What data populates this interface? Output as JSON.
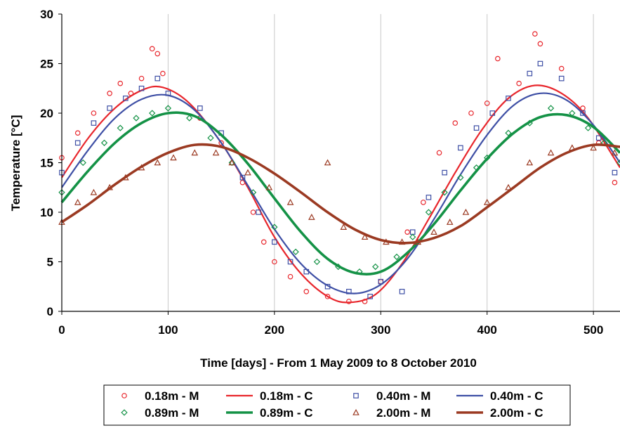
{
  "chart_data": {
    "type": "scatter",
    "xlabel": "Time [days] - From 1 May 2009 to 8 October 2010",
    "ylabel": "Temperature [°C]",
    "xlim": [
      0,
      525
    ],
    "ylim": [
      0,
      30
    ],
    "x_ticks": [
      0,
      100,
      200,
      300,
      400,
      500
    ],
    "y_ticks": [
      0,
      5,
      10,
      15,
      20,
      25,
      30
    ],
    "grid": "vertical",
    "legend_position": "bottom",
    "series": [
      {
        "name": "0.18m - M",
        "kind": "measured",
        "marker": "circle",
        "color": "#e8262c",
        "x": [
          0,
          15,
          30,
          45,
          55,
          65,
          75,
          85,
          90,
          95,
          130,
          150,
          170,
          180,
          190,
          200,
          215,
          230,
          250,
          270,
          285,
          300,
          325,
          340,
          355,
          370,
          385,
          400,
          410,
          430,
          445,
          450,
          470,
          490,
          505,
          520
        ],
        "y": [
          15.5,
          18.0,
          20.0,
          22.0,
          23.0,
          22.0,
          23.5,
          26.5,
          26.0,
          24.0,
          19.5,
          17.0,
          13.0,
          10.0,
          7.0,
          5.0,
          3.5,
          2.0,
          1.5,
          1.0,
          1.0,
          3.0,
          8.0,
          11.0,
          16.0,
          19.0,
          20.0,
          21.0,
          25.5,
          23.0,
          28.0,
          27.0,
          24.5,
          20.5,
          17.0,
          13.0
        ]
      },
      {
        "name": "0.18m - C",
        "kind": "curve",
        "color": "#e8262c",
        "x": [
          0,
          25,
          50,
          75,
          95,
          120,
          150,
          175,
          200,
          225,
          250,
          270,
          295,
          320,
          345,
          370,
          395,
          420,
          445,
          470,
          495,
          525
        ],
        "y": [
          13.5,
          17.5,
          20.5,
          22.3,
          22.6,
          21.0,
          17.0,
          12.5,
          7.5,
          3.8,
          1.5,
          0.9,
          1.7,
          4.8,
          9.3,
          14.0,
          18.3,
          21.5,
          22.8,
          22.0,
          19.5,
          14.5
        ]
      },
      {
        "name": "0.40m - M",
        "kind": "measured",
        "marker": "square",
        "color": "#3e4fa5",
        "x": [
          0,
          15,
          30,
          45,
          60,
          75,
          90,
          100,
          130,
          150,
          170,
          185,
          200,
          215,
          230,
          250,
          270,
          290,
          300,
          320,
          330,
          345,
          360,
          375,
          390,
          405,
          420,
          440,
          450,
          470,
          490,
          505,
          520
        ],
        "y": [
          14.0,
          17.0,
          19.0,
          20.5,
          21.5,
          22.5,
          23.5,
          22.0,
          20.5,
          18.0,
          13.5,
          10.0,
          7.0,
          5.0,
          4.0,
          2.5,
          2.0,
          1.5,
          3.0,
          2.0,
          8.0,
          11.5,
          14.0,
          16.5,
          18.5,
          20.0,
          21.5,
          24.0,
          25.0,
          23.5,
          20.0,
          17.5,
          14.0
        ]
      },
      {
        "name": "0.40m - C",
        "kind": "curve",
        "color": "#3e4fa5",
        "x": [
          0,
          25,
          50,
          75,
          100,
          125,
          150,
          175,
          200,
          225,
          250,
          275,
          300,
          325,
          350,
          375,
          400,
          425,
          450,
          475,
          500,
          525
        ],
        "y": [
          12.5,
          16.3,
          19.5,
          21.4,
          21.8,
          20.3,
          17.0,
          12.7,
          8.3,
          4.8,
          2.6,
          1.8,
          2.7,
          5.3,
          9.3,
          13.8,
          17.8,
          20.8,
          22.0,
          21.3,
          18.8,
          15.0
        ]
      },
      {
        "name": "0.89m - M",
        "kind": "measured",
        "marker": "diamond",
        "color": "#149246",
        "x": [
          0,
          20,
          40,
          55,
          70,
          85,
          100,
          120,
          140,
          160,
          180,
          200,
          220,
          240,
          260,
          280,
          295,
          315,
          330,
          345,
          360,
          375,
          390,
          400,
          420,
          440,
          460,
          480,
          495,
          510,
          525
        ],
        "y": [
          12.0,
          15.0,
          17.0,
          18.5,
          19.5,
          20.0,
          20.5,
          19.5,
          17.5,
          15.0,
          12.0,
          8.5,
          6.0,
          5.0,
          4.5,
          4.0,
          4.5,
          5.5,
          7.5,
          10.0,
          12.0,
          13.5,
          14.5,
          15.5,
          18.0,
          19.0,
          20.5,
          20.0,
          18.5,
          17.0,
          15.0
        ]
      },
      {
        "name": "0.89m - C",
        "kind": "curve",
        "color": "#149246",
        "x": [
          0,
          25,
          50,
          75,
          100,
          125,
          150,
          175,
          200,
          225,
          250,
          275,
          300,
          325,
          350,
          375,
          400,
          425,
          450,
          475,
          500,
          525
        ],
        "y": [
          11.0,
          14.2,
          17.0,
          19.0,
          20.0,
          19.7,
          17.8,
          14.9,
          11.4,
          8.0,
          5.3,
          3.9,
          4.0,
          5.9,
          8.8,
          12.2,
          15.4,
          18.0,
          19.6,
          19.8,
          18.6,
          16.0
        ]
      },
      {
        "name": "2.00m - M",
        "kind": "measured",
        "marker": "triangle",
        "color": "#9b3a22",
        "x": [
          0,
          15,
          30,
          45,
          60,
          75,
          90,
          105,
          125,
          145,
          160,
          175,
          195,
          215,
          235,
          250,
          265,
          285,
          305,
          320,
          335,
          350,
          365,
          380,
          400,
          420,
          440,
          460,
          480,
          500,
          520
        ],
        "y": [
          9.0,
          11.0,
          12.0,
          12.5,
          13.5,
          14.5,
          15.0,
          15.5,
          16.0,
          16.0,
          15.0,
          14.0,
          12.5,
          11.0,
          9.5,
          15.0,
          8.5,
          7.5,
          7.0,
          7.0,
          7.0,
          8.0,
          9.0,
          10.0,
          11.0,
          12.5,
          15.0,
          16.0,
          16.5,
          16.5,
          16.0
        ]
      },
      {
        "name": "2.00m - C",
        "kind": "curve",
        "color": "#9b3a22",
        "x": [
          0,
          25,
          50,
          75,
          100,
          125,
          150,
          175,
          200,
          225,
          250,
          275,
          300,
          325,
          350,
          375,
          400,
          425,
          450,
          475,
          500,
          525
        ],
        "y": [
          9.0,
          10.8,
          12.8,
          14.6,
          16.0,
          16.8,
          16.6,
          15.5,
          13.9,
          12.0,
          10.0,
          8.3,
          7.2,
          6.9,
          7.4,
          8.6,
          10.5,
          12.5,
          14.5,
          16.0,
          16.8,
          16.6
        ]
      }
    ]
  }
}
